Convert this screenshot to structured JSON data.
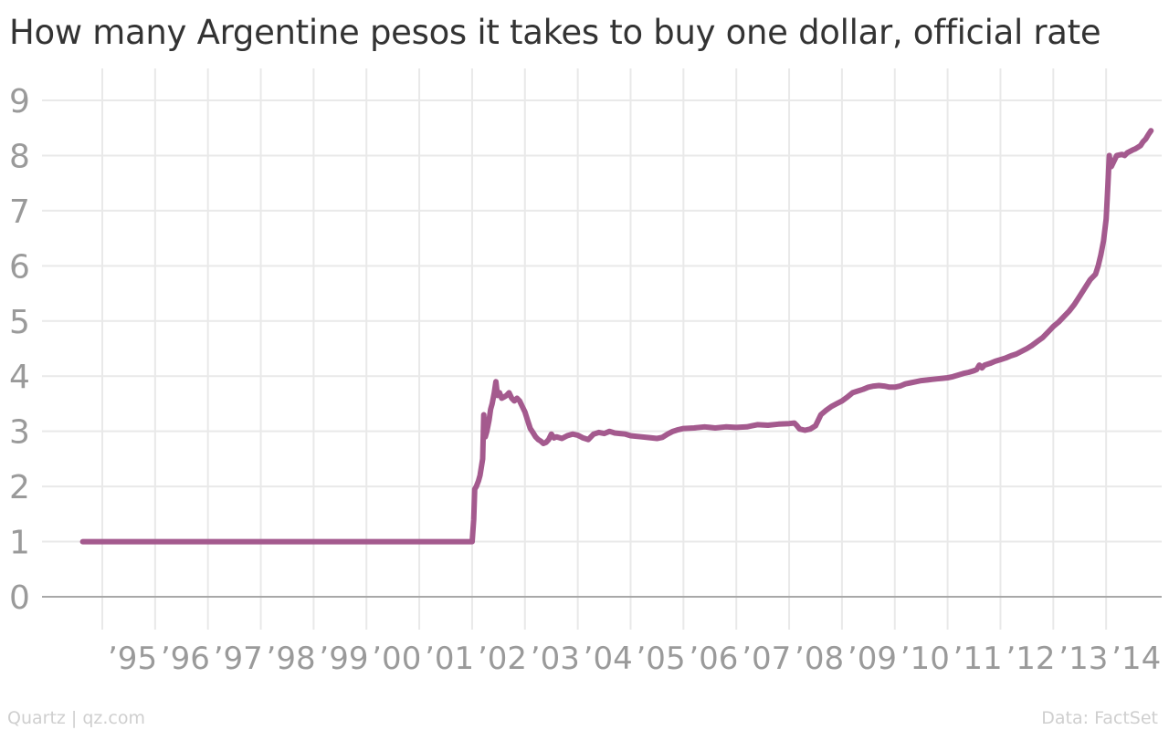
{
  "chart_data": {
    "type": "line",
    "title": "How many Argentine pesos it takes to buy one dollar, official rate",
    "xlabel": "",
    "ylabel": "",
    "ylim": [
      0,
      9
    ],
    "xlim": [
      1994.63,
      2014.85
    ],
    "grid": true,
    "y_ticks": [
      0,
      1,
      2,
      3,
      4,
      5,
      6,
      7,
      8,
      9
    ],
    "x_ticks": [
      {
        "year": 1995,
        "label": "’95"
      },
      {
        "year": 1996,
        "label": "’96"
      },
      {
        "year": 1997,
        "label": "’97"
      },
      {
        "year": 1998,
        "label": "’98"
      },
      {
        "year": 1999,
        "label": "’99"
      },
      {
        "year": 2000,
        "label": "’00"
      },
      {
        "year": 2001,
        "label": "’01"
      },
      {
        "year": 2002,
        "label": "’02"
      },
      {
        "year": 2003,
        "label": "’03"
      },
      {
        "year": 2004,
        "label": "’04"
      },
      {
        "year": 2005,
        "label": "’05"
      },
      {
        "year": 2006,
        "label": "’06"
      },
      {
        "year": 2007,
        "label": "’07"
      },
      {
        "year": 2008,
        "label": "’08"
      },
      {
        "year": 2009,
        "label": "’09"
      },
      {
        "year": 2010,
        "label": "’10"
      },
      {
        "year": 2011,
        "label": "’11"
      },
      {
        "year": 2012,
        "label": "’12"
      },
      {
        "year": 2013,
        "label": "’13"
      },
      {
        "year": 2014,
        "label": "’14"
      }
    ],
    "series": [
      {
        "color": "#a45a8e",
        "points": [
          [
            1994.63,
            1.0
          ],
          [
            2001.95,
            1.0
          ],
          [
            2002.0,
            1.0
          ],
          [
            2002.03,
            1.4
          ],
          [
            2002.05,
            1.95
          ],
          [
            2002.08,
            2.0
          ],
          [
            2002.12,
            2.1
          ],
          [
            2002.15,
            2.2
          ],
          [
            2002.2,
            2.5
          ],
          [
            2002.22,
            3.3
          ],
          [
            2002.25,
            2.9
          ],
          [
            2002.28,
            3.0
          ],
          [
            2002.32,
            3.2
          ],
          [
            2002.35,
            3.4
          ],
          [
            2002.38,
            3.5
          ],
          [
            2002.42,
            3.7
          ],
          [
            2002.45,
            3.9
          ],
          [
            2002.48,
            3.65
          ],
          [
            2002.52,
            3.7
          ],
          [
            2002.56,
            3.6
          ],
          [
            2002.6,
            3.62
          ],
          [
            2002.65,
            3.65
          ],
          [
            2002.7,
            3.7
          ],
          [
            2002.75,
            3.6
          ],
          [
            2002.8,
            3.55
          ],
          [
            2002.85,
            3.6
          ],
          [
            2002.9,
            3.55
          ],
          [
            2002.95,
            3.45
          ],
          [
            2003.0,
            3.35
          ],
          [
            2003.05,
            3.2
          ],
          [
            2003.1,
            3.05
          ],
          [
            2003.15,
            2.98
          ],
          [
            2003.2,
            2.9
          ],
          [
            2003.25,
            2.85
          ],
          [
            2003.3,
            2.82
          ],
          [
            2003.35,
            2.78
          ],
          [
            2003.4,
            2.8
          ],
          [
            2003.45,
            2.85
          ],
          [
            2003.5,
            2.95
          ],
          [
            2003.55,
            2.88
          ],
          [
            2003.6,
            2.9
          ],
          [
            2003.7,
            2.87
          ],
          [
            2003.8,
            2.92
          ],
          [
            2003.9,
            2.95
          ],
          [
            2004.0,
            2.93
          ],
          [
            2004.1,
            2.88
          ],
          [
            2004.2,
            2.85
          ],
          [
            2004.3,
            2.95
          ],
          [
            2004.4,
            2.98
          ],
          [
            2004.5,
            2.96
          ],
          [
            2004.6,
            3.0
          ],
          [
            2004.7,
            2.97
          ],
          [
            2004.8,
            2.96
          ],
          [
            2004.9,
            2.95
          ],
          [
            2005.0,
            2.92
          ],
          [
            2005.2,
            2.9
          ],
          [
            2005.4,
            2.88
          ],
          [
            2005.5,
            2.87
          ],
          [
            2005.6,
            2.89
          ],
          [
            2005.7,
            2.95
          ],
          [
            2005.8,
            3.0
          ],
          [
            2005.9,
            3.03
          ],
          [
            2006.0,
            3.05
          ],
          [
            2006.2,
            3.06
          ],
          [
            2006.4,
            3.08
          ],
          [
            2006.5,
            3.07
          ],
          [
            2006.6,
            3.06
          ],
          [
            2006.8,
            3.08
          ],
          [
            2007.0,
            3.07
          ],
          [
            2007.2,
            3.08
          ],
          [
            2007.3,
            3.1
          ],
          [
            2007.4,
            3.12
          ],
          [
            2007.6,
            3.11
          ],
          [
            2007.8,
            3.13
          ],
          [
            2008.0,
            3.14
          ],
          [
            2008.1,
            3.15
          ],
          [
            2008.15,
            3.1
          ],
          [
            2008.2,
            3.04
          ],
          [
            2008.3,
            3.02
          ],
          [
            2008.4,
            3.04
          ],
          [
            2008.5,
            3.1
          ],
          [
            2008.55,
            3.2
          ],
          [
            2008.6,
            3.3
          ],
          [
            2008.7,
            3.38
          ],
          [
            2008.8,
            3.45
          ],
          [
            2008.9,
            3.5
          ],
          [
            2009.0,
            3.55
          ],
          [
            2009.1,
            3.62
          ],
          [
            2009.2,
            3.7
          ],
          [
            2009.3,
            3.73
          ],
          [
            2009.4,
            3.76
          ],
          [
            2009.5,
            3.8
          ],
          [
            2009.6,
            3.82
          ],
          [
            2009.7,
            3.83
          ],
          [
            2009.8,
            3.82
          ],
          [
            2009.9,
            3.8
          ],
          [
            2010.0,
            3.8
          ],
          [
            2010.1,
            3.82
          ],
          [
            2010.2,
            3.86
          ],
          [
            2010.3,
            3.88
          ],
          [
            2010.4,
            3.9
          ],
          [
            2010.5,
            3.92
          ],
          [
            2010.6,
            3.93
          ],
          [
            2010.7,
            3.94
          ],
          [
            2010.8,
            3.95
          ],
          [
            2010.9,
            3.96
          ],
          [
            2011.0,
            3.97
          ],
          [
            2011.1,
            3.99
          ],
          [
            2011.2,
            4.02
          ],
          [
            2011.3,
            4.05
          ],
          [
            2011.4,
            4.07
          ],
          [
            2011.5,
            4.1
          ],
          [
            2011.55,
            4.12
          ],
          [
            2011.6,
            4.2
          ],
          [
            2011.65,
            4.15
          ],
          [
            2011.7,
            4.2
          ],
          [
            2011.8,
            4.23
          ],
          [
            2011.9,
            4.27
          ],
          [
            2012.0,
            4.3
          ],
          [
            2012.1,
            4.33
          ],
          [
            2012.2,
            4.37
          ],
          [
            2012.3,
            4.4
          ],
          [
            2012.4,
            4.45
          ],
          [
            2012.5,
            4.5
          ],
          [
            2012.6,
            4.56
          ],
          [
            2012.7,
            4.63
          ],
          [
            2012.8,
            4.7
          ],
          [
            2012.9,
            4.8
          ],
          [
            2013.0,
            4.9
          ],
          [
            2013.1,
            4.98
          ],
          [
            2013.2,
            5.08
          ],
          [
            2013.3,
            5.18
          ],
          [
            2013.4,
            5.3
          ],
          [
            2013.5,
            5.45
          ],
          [
            2013.6,
            5.6
          ],
          [
            2013.7,
            5.75
          ],
          [
            2013.8,
            5.85
          ],
          [
            2013.85,
            6.0
          ],
          [
            2013.9,
            6.2
          ],
          [
            2013.95,
            6.45
          ],
          [
            2014.0,
            6.85
          ],
          [
            2014.02,
            7.2
          ],
          [
            2014.04,
            7.6
          ],
          [
            2014.06,
            8.0
          ],
          [
            2014.08,
            7.85
          ],
          [
            2014.1,
            7.8
          ],
          [
            2014.15,
            7.9
          ],
          [
            2014.2,
            8.0
          ],
          [
            2014.3,
            8.02
          ],
          [
            2014.35,
            8.0
          ],
          [
            2014.4,
            8.05
          ],
          [
            2014.5,
            8.1
          ],
          [
            2014.55,
            8.12
          ],
          [
            2014.6,
            8.15
          ],
          [
            2014.65,
            8.18
          ],
          [
            2014.7,
            8.25
          ],
          [
            2014.75,
            8.3
          ],
          [
            2014.8,
            8.38
          ],
          [
            2014.85,
            8.45
          ]
        ]
      }
    ]
  },
  "footer": {
    "source_left": "Quartz | qz.com",
    "source_right": "Data: FactSet"
  }
}
